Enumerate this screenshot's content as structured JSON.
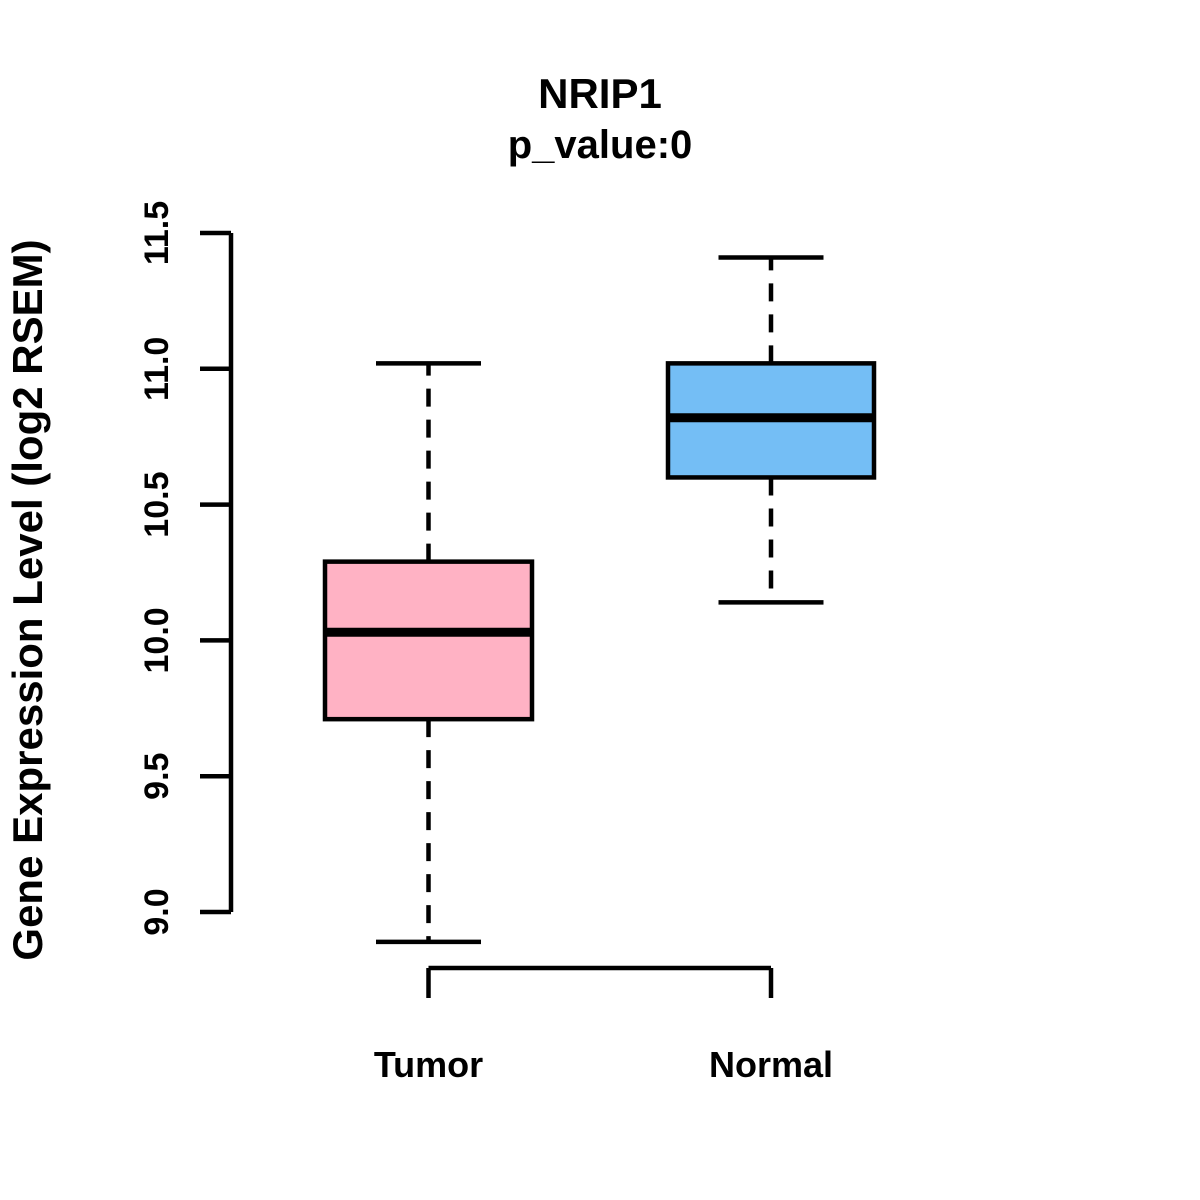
{
  "chart_data": {
    "type": "boxplot",
    "title": "NRIP1",
    "subtitle": "p_value:0",
    "ylabel": "Gene Expression Level (log2 RSEM)",
    "xlabel": "",
    "ylim": [
      9.0,
      11.5
    ],
    "y_ticks": [
      9.0,
      9.5,
      10.0,
      10.5,
      11.0,
      11.5
    ],
    "y_tick_labels": [
      "9.0",
      "9.5",
      "10.0",
      "10.5",
      "11.0",
      "11.5"
    ],
    "categories": [
      "Tumor",
      "Normal"
    ],
    "series": [
      {
        "name": "Tumor",
        "whisker_low": 8.89,
        "q1": 9.71,
        "median": 10.03,
        "q3": 10.29,
        "whisker_high": 11.02,
        "color": "#FFB2C4"
      },
      {
        "name": "Normal",
        "whisker_low": 10.14,
        "q1": 10.6,
        "median": 10.82,
        "q3": 11.02,
        "whisker_high": 11.41,
        "color": "#74BEF5"
      }
    ],
    "colors": {
      "line": "#000000",
      "background": "#FFFFFF",
      "tumor_box": "#FFB2C4",
      "normal_box": "#74BEF5"
    },
    "grid": false,
    "legend": "none"
  }
}
